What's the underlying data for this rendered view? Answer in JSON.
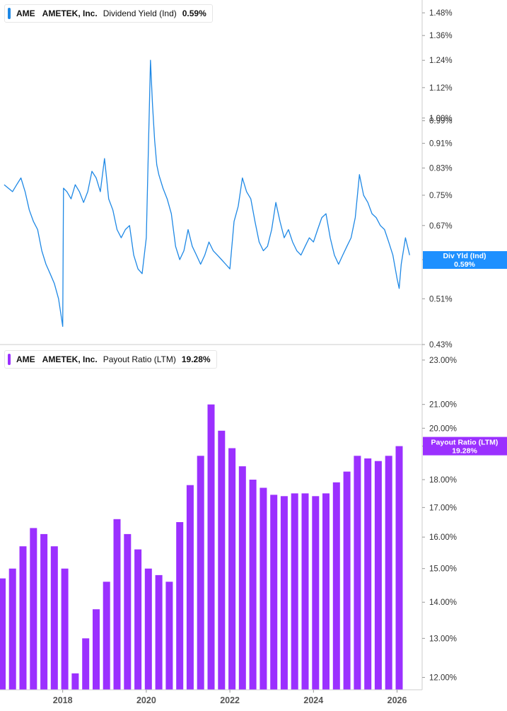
{
  "colors": {
    "yield_line": "#1e88e5",
    "yield_flag": "#1e90ff",
    "payout_bar": "#9b30ff",
    "payout_flag": "#9b30ff",
    "axis": "#cccccc",
    "grid_text": "#333333"
  },
  "legend_top": {
    "ticker": "AME",
    "company": "AMETEK, Inc.",
    "metric": "Dividend Yield (Ind)",
    "value": "0.59%"
  },
  "legend_bottom": {
    "ticker": "AME",
    "company": "AMETEK, Inc.",
    "metric": "Payout Ratio (LTM)",
    "value": "19.28%"
  },
  "chart_data": [
    {
      "type": "line",
      "title": "Dividend Yield (Ind)",
      "scale": "log",
      "ylim": [
        0.43,
        1.52
      ],
      "yticks": [
        "1.48%",
        "1.36%",
        "1.24%",
        "1.12%",
        "1.00%",
        "0.99%",
        "0.91%",
        "0.83%",
        "0.75%",
        "0.67%",
        "0.59%",
        "0.51%",
        "0.43%"
      ],
      "ytick_values": [
        1.48,
        1.36,
        1.24,
        1.12,
        1.0,
        0.99,
        0.91,
        0.83,
        0.75,
        0.67,
        0.59,
        0.51,
        0.43
      ],
      "flag": {
        "label": "Div Yld (Ind)",
        "value": "0.59%",
        "y": 0.59
      },
      "series": [
        {
          "x": [
            2016.6,
            2016.7,
            2016.8,
            2016.9,
            2017.0,
            2017.1,
            2017.2,
            2017.3,
            2017.4,
            2017.5,
            2017.6,
            2017.7,
            2017.8,
            2017.9,
            2017.96,
            2018.0,
            2018.02,
            2018.1,
            2018.2,
            2018.3,
            2018.4,
            2018.5,
            2018.6,
            2018.7,
            2018.8,
            2018.9,
            2019.0,
            2019.05,
            2019.1,
            2019.2,
            2019.3,
            2019.4,
            2019.5,
            2019.6,
            2019.7,
            2019.8,
            2019.9,
            2020.0,
            2020.1,
            2020.15,
            2020.2,
            2020.25,
            2020.3,
            2020.4,
            2020.5,
            2020.6,
            2020.7,
            2020.8,
            2020.9,
            2021.0,
            2021.1,
            2021.2,
            2021.3,
            2021.4,
            2021.5,
            2021.6,
            2021.7,
            2021.8,
            2021.9,
            2022.0,
            2022.1,
            2022.2,
            2022.3,
            2022.4,
            2022.5,
            2022.6,
            2022.7,
            2022.8,
            2022.9,
            2023.0,
            2023.1,
            2023.2,
            2023.3,
            2023.4,
            2023.5,
            2023.6,
            2023.7,
            2023.8,
            2023.9,
            2024.0,
            2024.1,
            2024.2,
            2024.3,
            2024.4,
            2024.5,
            2024.6,
            2024.7,
            2024.8,
            2024.9,
            2025.0,
            2025.1,
            2025.2,
            2025.3,
            2025.4,
            2025.5,
            2025.6,
            2025.7,
            2025.8,
            2025.9,
            2026.0,
            2026.05,
            2026.1,
            2026.2,
            2026.3
          ],
          "values": [
            0.78,
            0.77,
            0.76,
            0.78,
            0.8,
            0.76,
            0.71,
            0.68,
            0.66,
            0.61,
            0.58,
            0.56,
            0.54,
            0.51,
            0.48,
            0.46,
            0.77,
            0.76,
            0.74,
            0.78,
            0.76,
            0.73,
            0.76,
            0.82,
            0.8,
            0.76,
            0.86,
            0.8,
            0.74,
            0.71,
            0.66,
            0.64,
            0.66,
            0.67,
            0.6,
            0.57,
            0.56,
            0.64,
            1.24,
            1.05,
            0.92,
            0.84,
            0.81,
            0.77,
            0.74,
            0.7,
            0.62,
            0.59,
            0.61,
            0.66,
            0.62,
            0.6,
            0.58,
            0.6,
            0.63,
            0.61,
            0.6,
            0.59,
            0.58,
            0.57,
            0.68,
            0.72,
            0.8,
            0.76,
            0.74,
            0.68,
            0.63,
            0.61,
            0.62,
            0.66,
            0.73,
            0.68,
            0.64,
            0.66,
            0.63,
            0.61,
            0.6,
            0.62,
            0.64,
            0.63,
            0.66,
            0.69,
            0.7,
            0.64,
            0.6,
            0.58,
            0.6,
            0.62,
            0.64,
            0.69,
            0.81,
            0.75,
            0.73,
            0.7,
            0.69,
            0.67,
            0.66,
            0.63,
            0.6,
            0.55,
            0.53,
            0.58,
            0.64,
            0.6
          ]
        }
      ]
    },
    {
      "type": "bar",
      "title": "Payout Ratio (LTM)",
      "scale": "log",
      "ylim": [
        11.7,
        23.3
      ],
      "yticks": [
        "23.00%",
        "21.00%",
        "20.00%",
        "19.28%",
        "18.00%",
        "17.00%",
        "16.00%",
        "15.00%",
        "14.00%",
        "13.00%",
        "12.00%"
      ],
      "ytick_values": [
        23.0,
        21.0,
        20.0,
        19.28,
        18.0,
        17.0,
        16.0,
        15.0,
        14.0,
        13.0,
        12.0
      ],
      "flag": {
        "label": "Payout Ratio (LTM)",
        "value": "19.28%",
        "y": 19.28
      },
      "series": [
        {
          "name": "Payout Ratio (LTM)",
          "x": [
            2016.55,
            2016.8,
            2017.05,
            2017.3,
            2017.55,
            2017.8,
            2018.05,
            2018.3,
            2018.55,
            2018.8,
            2019.05,
            2019.3,
            2019.55,
            2019.8,
            2020.05,
            2020.3,
            2020.55,
            2020.8,
            2021.05,
            2021.3,
            2021.55,
            2021.8,
            2022.05,
            2022.3,
            2022.55,
            2022.8,
            2023.05,
            2023.3,
            2023.55,
            2023.8,
            2024.05,
            2024.3,
            2024.55,
            2024.8,
            2025.05,
            2025.3,
            2025.55,
            2025.8,
            2026.05
          ],
          "values": [
            14.7,
            15.0,
            15.7,
            16.3,
            16.1,
            15.7,
            15.0,
            12.1,
            13.0,
            13.8,
            14.6,
            16.6,
            16.1,
            15.6,
            15.0,
            14.8,
            14.6,
            16.5,
            17.8,
            18.9,
            21.0,
            19.9,
            19.2,
            18.5,
            18.0,
            17.7,
            17.45,
            17.4,
            17.5,
            17.5,
            17.4,
            17.5,
            17.9,
            18.3,
            18.9,
            18.8,
            18.7,
            18.9,
            19.28
          ]
        }
      ]
    }
  ],
  "x_axis": {
    "ticks": [
      "2018",
      "2020",
      "2022",
      "2024",
      "2026"
    ],
    "tick_values": [
      2018,
      2020,
      2022,
      2024,
      2026
    ],
    "xlim": [
      2016.5,
      2026.6
    ]
  }
}
